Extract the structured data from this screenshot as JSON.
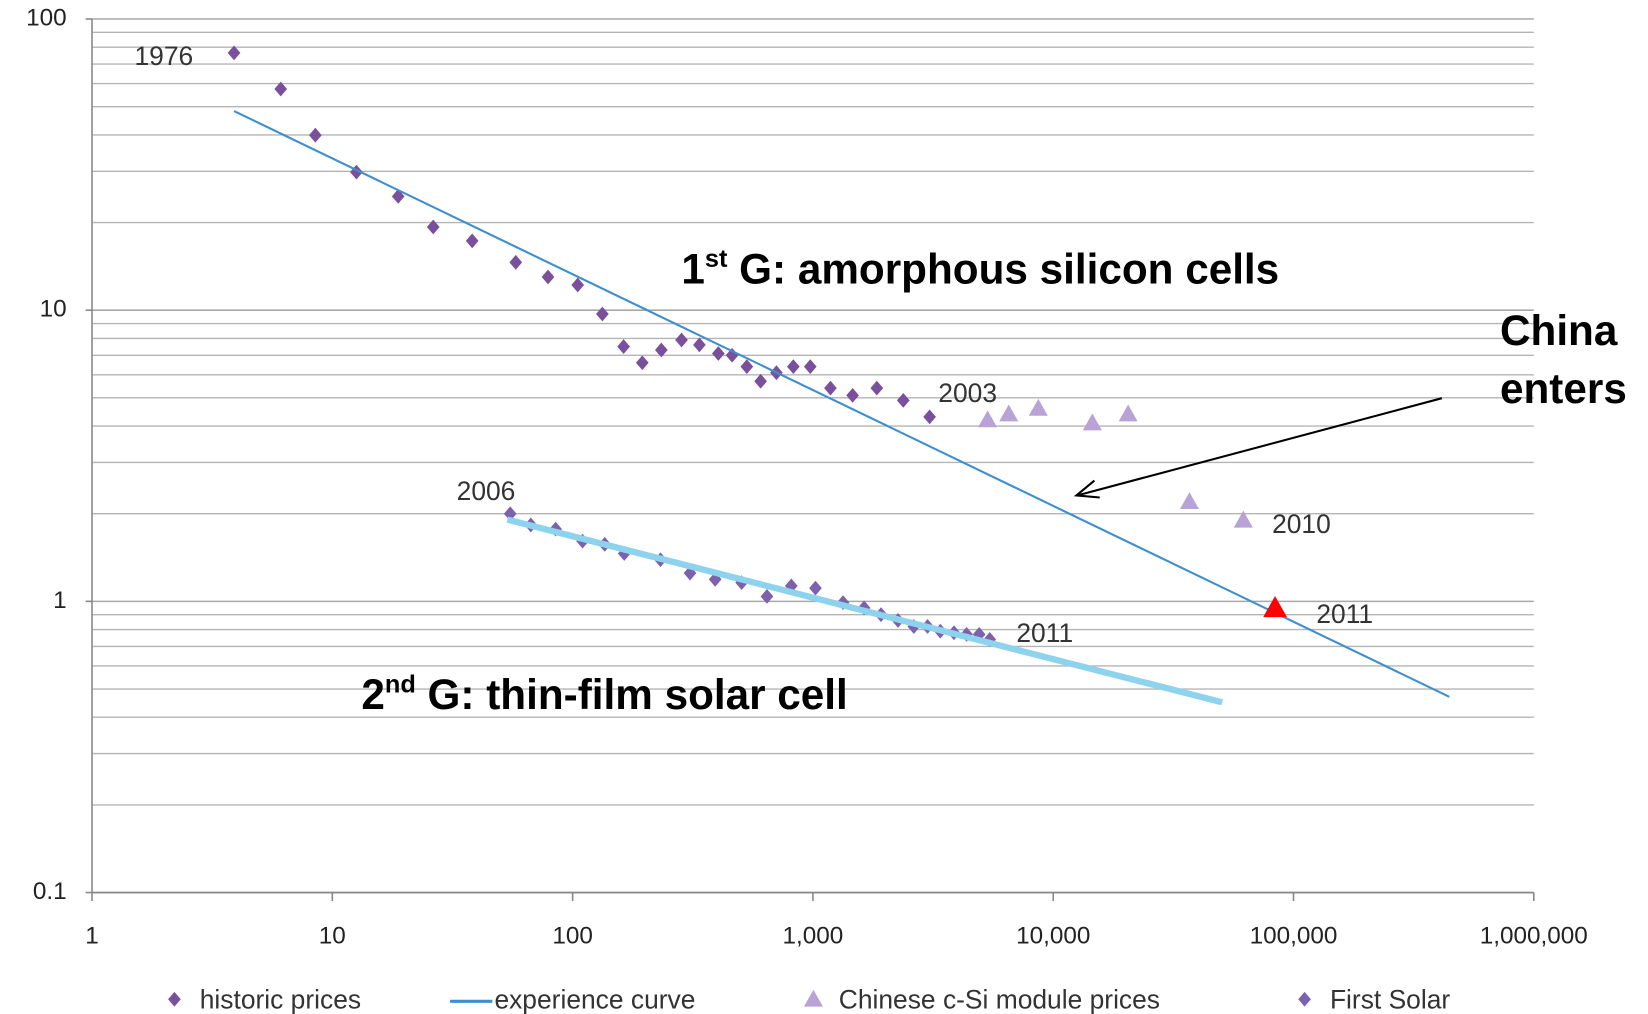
{
  "chart_data": {
    "type": "scatter",
    "log_x": true,
    "log_y": true,
    "grid": true,
    "minor_grid": true,
    "xlim": [
      1,
      1000000
    ],
    "xticks": [
      1,
      10,
      100,
      {
        "value": 1000,
        "label": "1,000"
      },
      {
        "value": 10000,
        "label": "10,000"
      },
      {
        "value": 100000,
        "label": "100,000"
      },
      {
        "value": 1000000,
        "label": "1,000,000"
      }
    ],
    "ylim": [
      0.1,
      100
    ],
    "yticks": [
      0.1,
      1,
      10,
      100
    ],
    "legend": "bottom",
    "series": [
      {
        "name": "historic prices",
        "marker": "diamond",
        "color": "#7a4f9c",
        "x": [
          3.9,
          6.1,
          8.5,
          12.6,
          18.8,
          26.3,
          38.2,
          58,
          79,
          105,
          133,
          163,
          195,
          234,
          284,
          337,
          404,
          461,
          531,
          606,
          705,
          829,
          975,
          1183,
          1463,
          1845,
          2377,
          3060
        ],
        "values": [
          76.5,
          57.5,
          39.9,
          29.8,
          24.6,
          19.3,
          17.3,
          14.6,
          13.0,
          12.2,
          9.7,
          7.5,
          6.6,
          7.3,
          7.9,
          7.6,
          7.1,
          7.0,
          6.4,
          5.7,
          6.1,
          6.4,
          6.4,
          5.4,
          5.1,
          5.4,
          4.9,
          4.3
        ]
      },
      {
        "name": "experience curve",
        "marker": "line",
        "color": "#3f8fd0",
        "width": 2,
        "x": [
          3.9,
          445000
        ],
        "values": [
          48.3,
          0.47
        ]
      },
      {
        "name": "Chinese c-Si module prices",
        "marker": "triangle",
        "color": "#b9a3d6",
        "point_colors": [
          null,
          null,
          null,
          null,
          null,
          null,
          null,
          "#ff0000"
        ],
        "x": [
          5333,
          6530,
          8670,
          14550,
          20500,
          36900,
          61800,
          83800
        ],
        "values": [
          4.2,
          4.4,
          4.6,
          4.1,
          4.4,
          2.2,
          1.9,
          0.95
        ]
      },
      {
        "name": "First Solar",
        "marker": "diamond",
        "color": "#7c61ad",
        "x": [
          55,
          67,
          85,
          110,
          136,
          164,
          232,
          308,
          392,
          505,
          644,
          813,
          1025,
          1335,
          1633,
          1921,
          2260,
          2630,
          3000,
          3390,
          3865,
          4360,
          4920,
          5445
        ],
        "values": [
          2.0,
          1.83,
          1.77,
          1.61,
          1.57,
          1.46,
          1.39,
          1.25,
          1.19,
          1.16,
          1.04,
          1.13,
          1.11,
          0.99,
          0.95,
          0.9,
          0.86,
          0.82,
          0.82,
          0.79,
          0.78,
          0.77,
          0.77,
          0.74
        ]
      },
      {
        "marker": "line",
        "color": "#8ed3ee",
        "width": 6,
        "x": [
          53.5,
          50500
        ],
        "values": [
          1.91,
          0.45
        ]
      }
    ],
    "annotations": [
      {
        "text": "1976"
      },
      {
        "text": "2003"
      },
      {
        "text": "2006"
      },
      {
        "text": "2010"
      },
      {
        "text": "2011"
      },
      {
        "text": "2011"
      }
    ],
    "generation_labels": [
      {
        "number": "1",
        "sup": "st",
        "text": " G: amorphous silicon cells"
      },
      {
        "number": "2",
        "sup": "nd",
        "text": " G: thin-film solar cell"
      }
    ],
    "callout": {
      "lines": [
        "China",
        "enters"
      ]
    }
  }
}
